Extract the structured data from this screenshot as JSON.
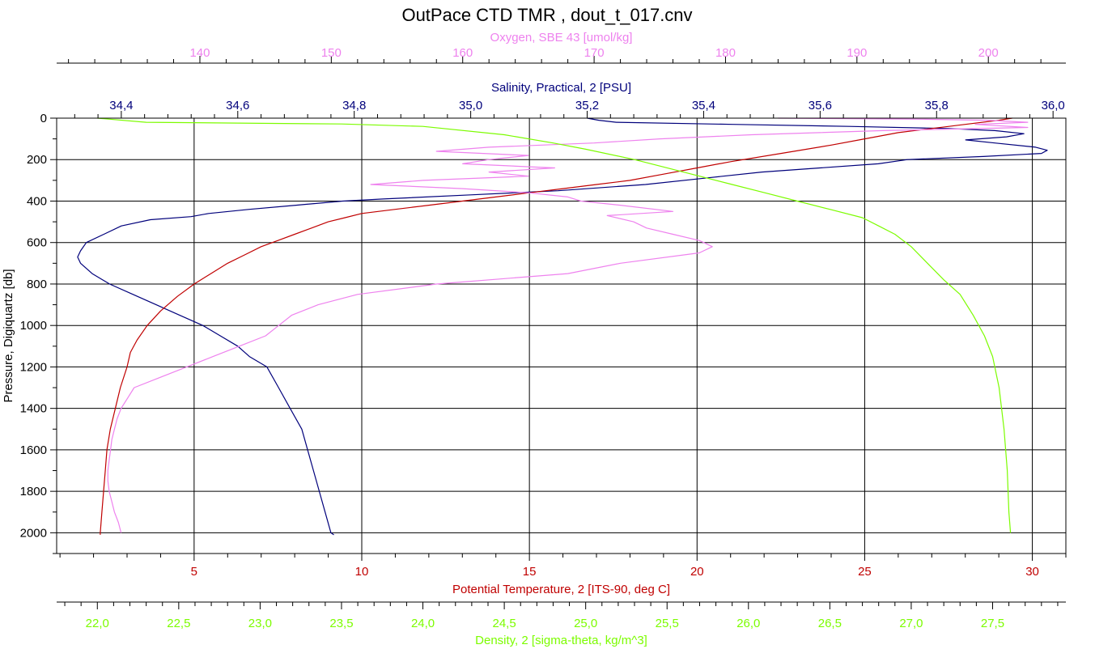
{
  "chart_data": {
    "type": "line",
    "title": "OutPace CTD TMR , dout_t_017.cnv",
    "grid": true,
    "y_axis": {
      "label": "Pressure, Digiquartz [db]",
      "range": [
        0,
        2100
      ],
      "inverted": true,
      "ticks": [
        0,
        200,
        400,
        600,
        800,
        1000,
        1200,
        1400,
        1600,
        1800,
        2000
      ]
    },
    "x_axes": [
      {
        "id": "oxygen",
        "label": "Oxygen, SBE 43 [umol/kg]",
        "position": "top-outer",
        "color": "#ee82ee",
        "range": [
          129.1,
          205.9
        ],
        "ticks": [
          140,
          150,
          160,
          170,
          180,
          190,
          200
        ],
        "tick_labels": [
          "140",
          "150",
          "160",
          "170",
          "180",
          "190",
          "200"
        ]
      },
      {
        "id": "salinity",
        "label": "Salinity, Practical, 2 [PSU]",
        "position": "top-inner",
        "color": "#00007b",
        "range": [
          34.289,
          36.022
        ],
        "ticks": [
          34.4,
          34.6,
          34.8,
          35.0,
          35.2,
          35.4,
          35.6,
          35.8,
          36.0
        ],
        "tick_labels": [
          "34,4",
          "34,6",
          "34,8",
          "35,0",
          "35,2",
          "35,4",
          "35,6",
          "35,8",
          "36,0"
        ]
      },
      {
        "id": "temperature",
        "label": "Potential Temperature, 2 [ITS-90, deg C]",
        "position": "bottom-inner",
        "color": "#c00000",
        "range": [
          0.9,
          31.0
        ],
        "ticks": [
          5,
          10,
          15,
          20,
          25,
          30
        ],
        "tick_labels": [
          "5",
          "10",
          "15",
          "20",
          "25",
          "30"
        ]
      },
      {
        "id": "density",
        "label": "Density, 2 [sigma-theta, kg/m^3]",
        "position": "bottom-outer",
        "color": "#7cfc00",
        "range": [
          21.75,
          27.95
        ],
        "ticks": [
          22.0,
          22.5,
          23.0,
          23.5,
          24.0,
          24.5,
          25.0,
          25.5,
          26.0,
          26.5,
          27.0,
          27.5
        ],
        "tick_labels": [
          "22,0",
          "22,5",
          "23,0",
          "23,5",
          "24,0",
          "24,5",
          "25,0",
          "25,5",
          "26,0",
          "26,5",
          "27,0",
          "27,5"
        ]
      }
    ],
    "series": [
      {
        "axis": "salinity",
        "color": "#00007b",
        "points": [
          [
            35.2,
            0
          ],
          [
            35.22,
            10
          ],
          [
            35.25,
            20
          ],
          [
            35.45,
            30
          ],
          [
            35.65,
            40
          ],
          [
            35.82,
            50
          ],
          [
            35.9,
            60
          ],
          [
            35.95,
            75
          ],
          [
            35.92,
            90
          ],
          [
            35.85,
            105
          ],
          [
            35.9,
            120
          ],
          [
            35.97,
            140
          ],
          [
            35.99,
            155
          ],
          [
            35.98,
            170
          ],
          [
            35.88,
            185
          ],
          [
            35.75,
            200
          ],
          [
            35.7,
            220
          ],
          [
            35.6,
            240
          ],
          [
            35.5,
            260
          ],
          [
            35.4,
            290
          ],
          [
            35.3,
            320
          ],
          [
            35.15,
            350
          ],
          [
            35.0,
            370
          ],
          [
            34.85,
            390
          ],
          [
            34.78,
            400
          ],
          [
            34.7,
            420
          ],
          [
            34.62,
            440
          ],
          [
            34.55,
            460
          ],
          [
            34.52,
            475
          ],
          [
            34.45,
            490
          ],
          [
            34.4,
            520
          ],
          [
            34.37,
            560
          ],
          [
            34.34,
            600
          ],
          [
            34.33,
            640
          ],
          [
            34.325,
            670
          ],
          [
            34.33,
            700
          ],
          [
            34.35,
            750
          ],
          [
            34.38,
            800
          ],
          [
            34.42,
            850
          ],
          [
            34.46,
            900
          ],
          [
            34.5,
            950
          ],
          [
            34.54,
            1000
          ],
          [
            34.57,
            1050
          ],
          [
            34.6,
            1100
          ],
          [
            34.62,
            1150
          ],
          [
            34.65,
            1200
          ],
          [
            34.67,
            1300
          ],
          [
            34.69,
            1400
          ],
          [
            34.71,
            1500
          ],
          [
            34.72,
            1600
          ],
          [
            34.73,
            1700
          ],
          [
            34.74,
            1800
          ],
          [
            34.75,
            1900
          ],
          [
            34.76,
            2000
          ],
          [
            34.765,
            2010
          ]
        ]
      },
      {
        "axis": "temperature",
        "color": "#c00000",
        "points": [
          [
            29.4,
            0
          ],
          [
            29.0,
            10
          ],
          [
            28.0,
            30
          ],
          [
            27.0,
            50
          ],
          [
            26.0,
            70
          ],
          [
            25.0,
            100
          ],
          [
            24.0,
            130
          ],
          [
            22.5,
            170
          ],
          [
            21.0,
            210
          ],
          [
            20.0,
            240
          ],
          [
            19.0,
            270
          ],
          [
            18.0,
            300
          ],
          [
            17.0,
            320
          ],
          [
            16.0,
            340
          ],
          [
            15.0,
            360
          ],
          [
            14.0,
            380
          ],
          [
            13.0,
            400
          ],
          [
            12.0,
            420
          ],
          [
            11.0,
            440
          ],
          [
            10.0,
            460
          ],
          [
            9.5,
            480
          ],
          [
            9.0,
            500
          ],
          [
            8.5,
            530
          ],
          [
            8.0,
            560
          ],
          [
            7.5,
            590
          ],
          [
            7.0,
            620
          ],
          [
            6.5,
            660
          ],
          [
            6.0,
            700
          ],
          [
            5.5,
            750
          ],
          [
            5.0,
            800
          ],
          [
            4.5,
            860
          ],
          [
            4.0,
            930
          ],
          [
            3.6,
            1000
          ],
          [
            3.3,
            1070
          ],
          [
            3.1,
            1130
          ],
          [
            3.0,
            1200
          ],
          [
            2.8,
            1300
          ],
          [
            2.65,
            1400
          ],
          [
            2.5,
            1500
          ],
          [
            2.4,
            1600
          ],
          [
            2.35,
            1700
          ],
          [
            2.3,
            1800
          ],
          [
            2.25,
            1900
          ],
          [
            2.2,
            2000
          ],
          [
            2.2,
            2010
          ]
        ]
      },
      {
        "axis": "oxygen",
        "color": "#ee82ee",
        "points": [
          [
            184.0,
            0
          ],
          [
            195.0,
            5
          ],
          [
            200.0,
            10
          ],
          [
            203.0,
            20
          ],
          [
            199.0,
            30
          ],
          [
            203.0,
            45
          ],
          [
            192.0,
            60
          ],
          [
            182.0,
            80
          ],
          [
            175.0,
            100
          ],
          [
            170.0,
            120
          ],
          [
            162.0,
            140
          ],
          [
            158.0,
            160
          ],
          [
            165.0,
            180
          ],
          [
            162.0,
            200
          ],
          [
            160.0,
            220
          ],
          [
            167.0,
            240
          ],
          [
            162.0,
            260
          ],
          [
            165.0,
            280
          ],
          [
            157.0,
            300
          ],
          [
            153.0,
            320
          ],
          [
            160.0,
            340
          ],
          [
            165.0,
            360
          ],
          [
            168.0,
            380
          ],
          [
            169.0,
            400
          ],
          [
            172.0,
            420
          ],
          [
            176.0,
            450
          ],
          [
            171.0,
            470
          ],
          [
            173.0,
            500
          ],
          [
            174.0,
            530
          ],
          [
            176.0,
            560
          ],
          [
            178.0,
            590
          ],
          [
            179.0,
            620
          ],
          [
            178.0,
            650
          ],
          [
            172.0,
            700
          ],
          [
            168.0,
            750
          ],
          [
            158.0,
            800
          ],
          [
            152.0,
            850
          ],
          [
            149.0,
            900
          ],
          [
            147.0,
            950
          ],
          [
            146.0,
            1000
          ],
          [
            145.0,
            1050
          ],
          [
            143.0,
            1100
          ],
          [
            141.0,
            1150
          ],
          [
            139.0,
            1200
          ],
          [
            137.0,
            1250
          ],
          [
            135.0,
            1300
          ],
          [
            134.5,
            1350
          ],
          [
            134.0,
            1400
          ],
          [
            133.7,
            1450
          ],
          [
            133.5,
            1500
          ],
          [
            133.3,
            1550
          ],
          [
            133.2,
            1600
          ],
          [
            133.1,
            1650
          ],
          [
            133.0,
            1700
          ],
          [
            133.0,
            1750
          ],
          [
            133.1,
            1800
          ],
          [
            133.3,
            1850
          ],
          [
            133.5,
            1900
          ],
          [
            133.8,
            1950
          ],
          [
            134.0,
            2000
          ]
        ]
      },
      {
        "axis": "density",
        "color": "#7cfc00",
        "points": [
          [
            22.0,
            0
          ],
          [
            22.3,
            20
          ],
          [
            23.0,
            25
          ],
          [
            23.5,
            28
          ],
          [
            24.0,
            40
          ],
          [
            24.5,
            80
          ],
          [
            24.8,
            120
          ],
          [
            25.0,
            150
          ],
          [
            25.3,
            200
          ],
          [
            25.6,
            260
          ],
          [
            25.9,
            320
          ],
          [
            26.1,
            360
          ],
          [
            26.3,
            400
          ],
          [
            26.5,
            440
          ],
          [
            26.7,
            480
          ],
          [
            26.8,
            520
          ],
          [
            26.9,
            560
          ],
          [
            27.0,
            620
          ],
          [
            27.1,
            700
          ],
          [
            27.2,
            780
          ],
          [
            27.3,
            850
          ],
          [
            27.38,
            950
          ],
          [
            27.45,
            1050
          ],
          [
            27.5,
            1150
          ],
          [
            27.54,
            1300
          ],
          [
            27.57,
            1500
          ],
          [
            27.59,
            1700
          ],
          [
            27.6,
            1900
          ],
          [
            27.61,
            2000
          ]
        ]
      }
    ]
  }
}
